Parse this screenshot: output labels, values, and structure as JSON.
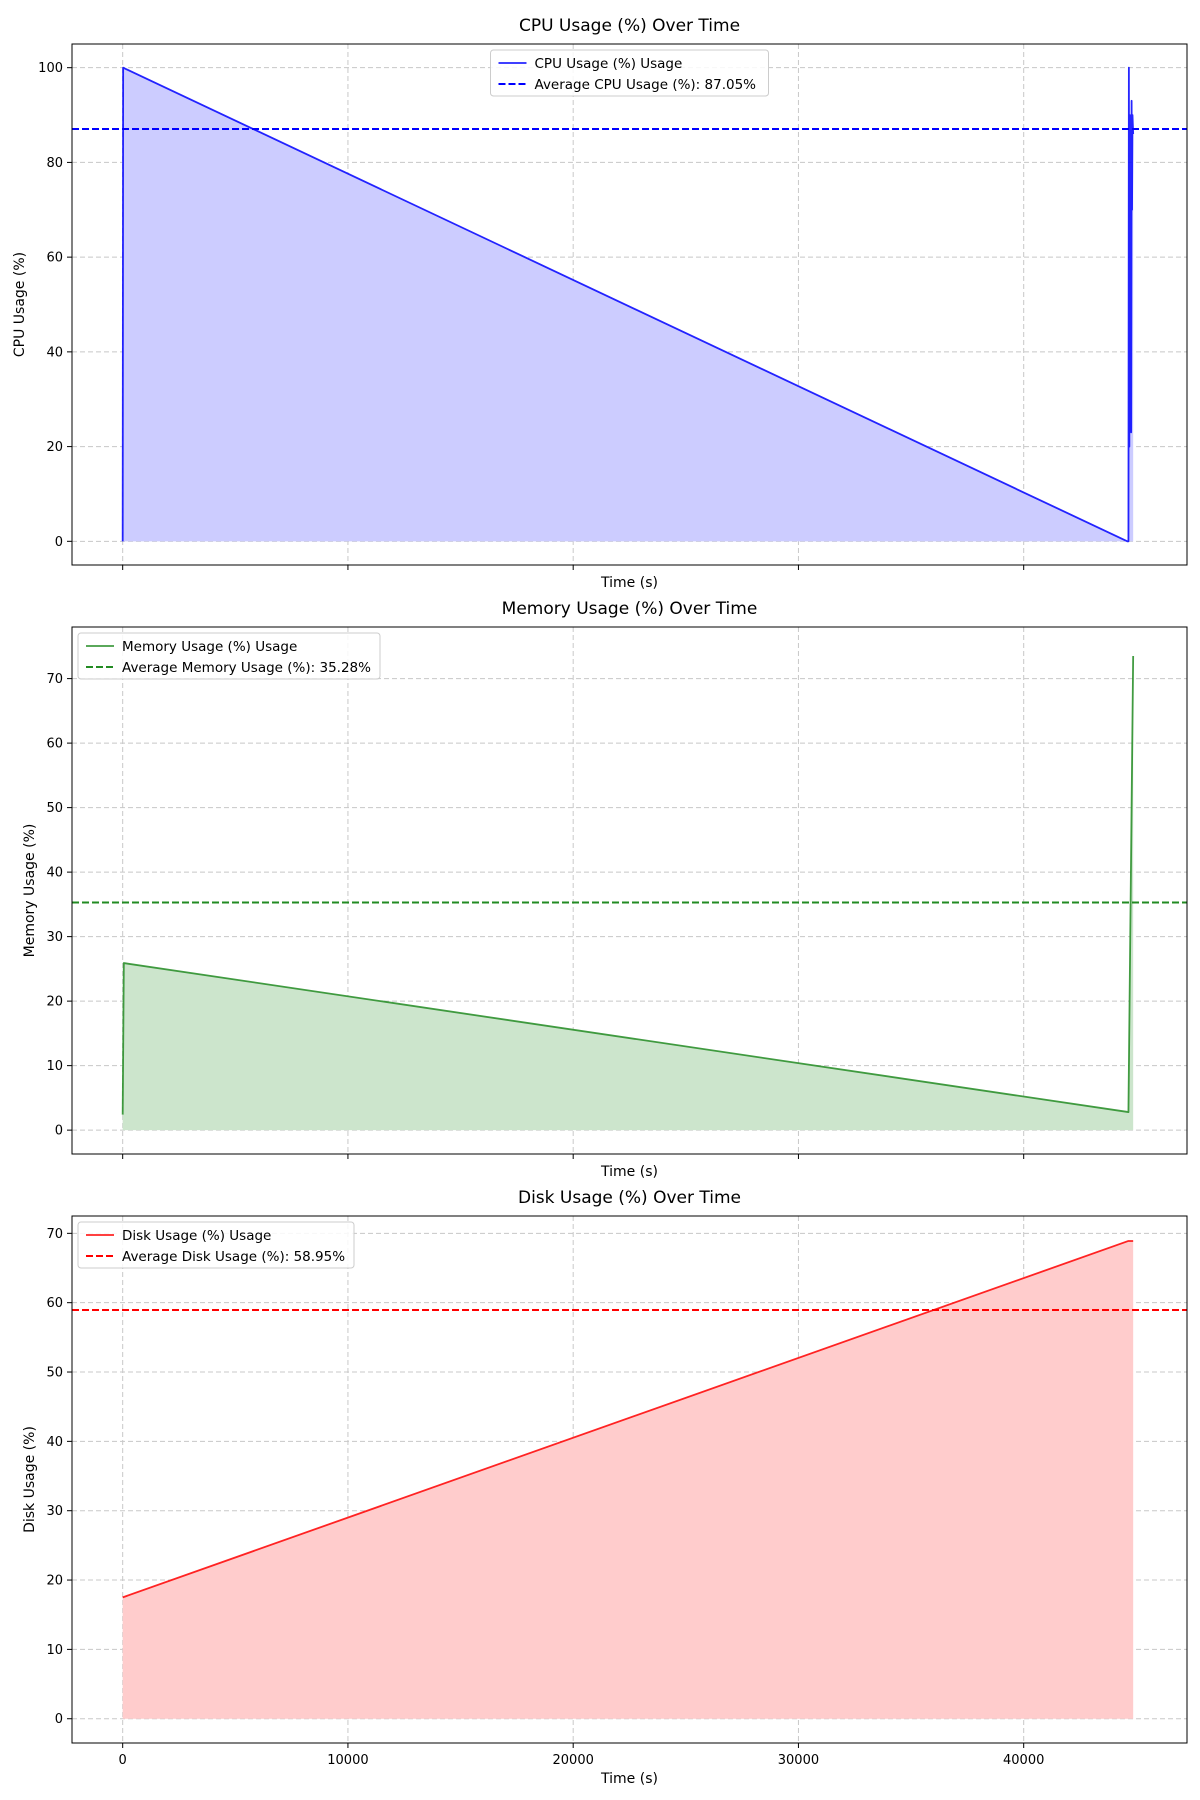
{
  "chart_data": [
    {
      "type": "area",
      "title": "CPU Usage (%) Over Time",
      "xlabel": "Time (s)",
      "ylabel": "CPU Usage (%)",
      "xlim": [
        -2250,
        47250
      ],
      "ylim": [
        -5,
        105
      ],
      "xticks": [
        0,
        10000,
        20000,
        30000,
        40000
      ],
      "xtick_labels_visible": false,
      "yticks": [
        0,
        20,
        40,
        60,
        80,
        100
      ],
      "grid": true,
      "legend_position": "top-center",
      "color": "#0000ff",
      "fill_color": "#ccccff",
      "series": [
        {
          "name": "CPU Usage (%) Usage",
          "x": [
            0,
            20,
            44600,
            44650,
            44670,
            44690,
            44710,
            44730,
            44750,
            44770,
            44790,
            44810,
            44830,
            44860
          ],
          "y": [
            0,
            100,
            0,
            0,
            100,
            20,
            90,
            40,
            85,
            23,
            93,
            70,
            90,
            86
          ]
        }
      ],
      "average": {
        "label": "Average CPU Usage (%): 87.05%",
        "value": 87.05
      }
    },
    {
      "type": "area",
      "title": "Memory Usage (%) Over Time",
      "xlabel": "Time (s)",
      "ylabel": "Memory Usage (%)",
      "xlim": [
        -2250,
        47250
      ],
      "ylim": [
        -3.7,
        78
      ],
      "xticks": [
        0,
        10000,
        20000,
        30000,
        40000
      ],
      "xtick_labels_visible": false,
      "yticks": [
        0,
        10,
        20,
        30,
        40,
        50,
        60,
        70
      ],
      "grid": true,
      "legend_position": "top-left",
      "color": "#228b22",
      "fill_color": "#cce5cc",
      "series": [
        {
          "name": "Memory Usage (%) Usage",
          "x": [
            0,
            50,
            44650,
            44860
          ],
          "y": [
            2.4,
            25.9,
            2.8,
            73.5
          ]
        }
      ],
      "average": {
        "label": "Average Memory Usage (%): 35.28%",
        "value": 35.28
      }
    },
    {
      "type": "area",
      "title": "Disk Usage (%) Over Time",
      "xlabel": "Time (s)",
      "ylabel": "Disk Usage (%)",
      "xlim": [
        -2250,
        47250
      ],
      "ylim": [
        -3.5,
        72.5
      ],
      "xticks": [
        0,
        10000,
        20000,
        30000,
        40000
      ],
      "xtick_labels_visible": true,
      "yticks": [
        0,
        10,
        20,
        30,
        40,
        50,
        60,
        70
      ],
      "grid": true,
      "legend_position": "top-left",
      "color": "#ff0000",
      "fill_color": "#ffcccc",
      "series": [
        {
          "name": "Disk Usage (%) Usage",
          "x": [
            0,
            44650,
            44860
          ],
          "y": [
            17.5,
            68.9,
            68.9
          ]
        }
      ],
      "average": {
        "label": "Average Disk Usage (%): 58.95%",
        "value": 58.95
      }
    }
  ]
}
